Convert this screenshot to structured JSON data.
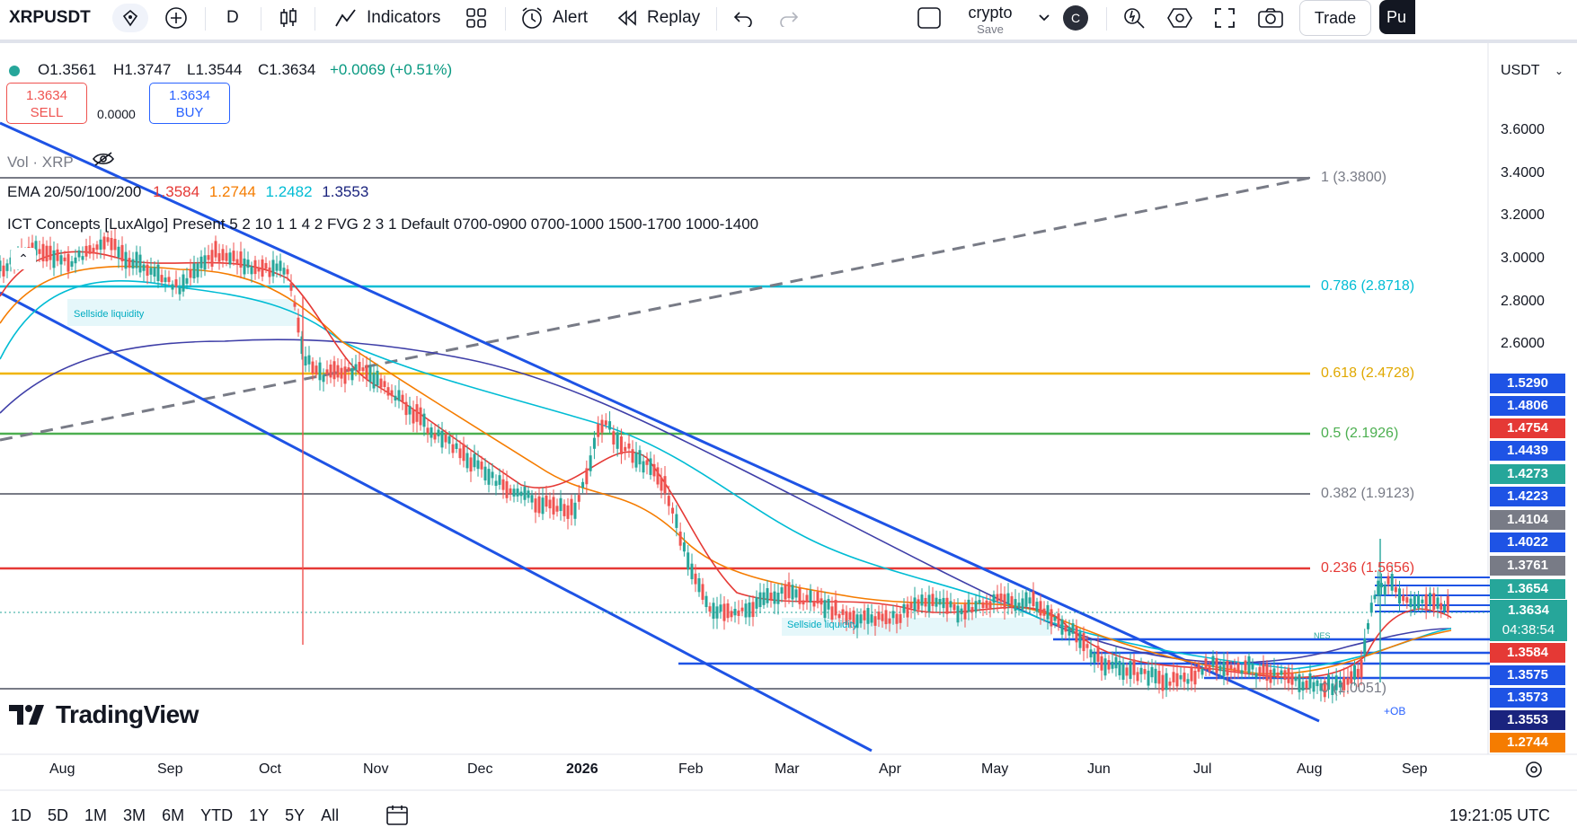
{
  "toolbar": {
    "symbol": "XRPUSDT",
    "interval": "D",
    "indicators_label": "Indicators",
    "alert_label": "Alert",
    "replay_label": "Replay",
    "layout_name": "crypto",
    "save_label": "Save",
    "avatar_letter": "C",
    "trade_label": "Trade",
    "publish_label": "Pu"
  },
  "legend": {
    "open": "O1.3561",
    "high": "H1.3747",
    "low": "L1.3544",
    "close": "C1.3634",
    "change": "+0.0069 (+0.51%)"
  },
  "trade_widget": {
    "sell_price": "1.3634",
    "sell_label": "SELL",
    "spread": "0.0000",
    "buy_price": "1.3634",
    "buy_label": "BUY"
  },
  "indicators": {
    "vol_label": "Vol · XRP",
    "ema_name": "EMA 20/50/100/200",
    "ema20": "1.3584",
    "ema50": "1.2744",
    "ema100": "1.2482",
    "ema200": "1.3553",
    "ict": "ICT Concepts [LuxAlgo] Present 5 2 10 1 1 4 2 FVG 2 3 1 Default 0700-0900 0700-1000 1500-1700 1000-1400"
  },
  "currency": "USDT",
  "fib_levels": [
    {
      "label": "1 (3.3800)",
      "color": "#787b86"
    },
    {
      "label": "0.786 (2.8718)",
      "color": "#00bcd4"
    },
    {
      "label": "0.618 (2.4728)",
      "color": "#f0b400"
    },
    {
      "label": "0.5 (2.1926)",
      "color": "#4caf50"
    },
    {
      "label": "0.382 (1.9123)",
      "color": "#787b86"
    },
    {
      "label": "0.236 (1.5656)",
      "color": "#e53935"
    },
    {
      "label": "0 (1.0051)",
      "color": "#787b86"
    }
  ],
  "price_axis": [
    "3.6000",
    "3.4000",
    "3.2000",
    "3.0000",
    "2.8000",
    "2.6000"
  ],
  "price_labels": [
    {
      "value": "1.5290",
      "color": "#1e53e5"
    },
    {
      "value": "1.4806",
      "color": "#1e53e5"
    },
    {
      "value": "1.4754",
      "color": "#e53935"
    },
    {
      "value": "1.4439",
      "color": "#1e53e5"
    },
    {
      "value": "1.4273",
      "color": "#26a69a"
    },
    {
      "value": "1.4223",
      "color": "#1e53e5"
    },
    {
      "value": "1.4104",
      "color": "#787b86"
    },
    {
      "value": "1.4022",
      "color": "#1e53e5"
    },
    {
      "value": "1.3761",
      "color": "#787b86"
    },
    {
      "value": "1.3654",
      "color": "#26a69a"
    },
    {
      "value": "1.3634",
      "color": "#26a69a"
    },
    {
      "value": "1.3584",
      "color": "#e53935"
    },
    {
      "value": "1.3575",
      "color": "#1e53e5"
    },
    {
      "value": "1.3573",
      "color": "#1e53e5"
    },
    {
      "value": "1.3553",
      "color": "#1a237e"
    },
    {
      "value": "1.2744",
      "color": "#f57c00"
    }
  ],
  "countdown": "04:38:54",
  "time_axis": [
    "Aug",
    "Sep",
    "Oct",
    "Nov",
    "Dec",
    "2026",
    "Feb",
    "Mar",
    "Apr",
    "May",
    "Jun",
    "Jul",
    "Aug",
    "Sep"
  ],
  "annotations": {
    "sellside1": "Sellside liquidity",
    "sellside2": "Sellside liquidity",
    "ob": "+OB",
    "nes": "NES"
  },
  "brand": "TradingView",
  "ranges": [
    "1D",
    "5D",
    "1M",
    "3M",
    "6M",
    "YTD",
    "1Y",
    "5Y",
    "All"
  ],
  "clock": "19:21:05 UTC",
  "colors": {
    "up": "#26a69a",
    "down": "#ef5350",
    "channel": "#1e53e5",
    "ema20": "#e53935",
    "ema50": "#f57c00",
    "ema100": "#00bcd4",
    "ema200": "#3f3fa8"
  }
}
